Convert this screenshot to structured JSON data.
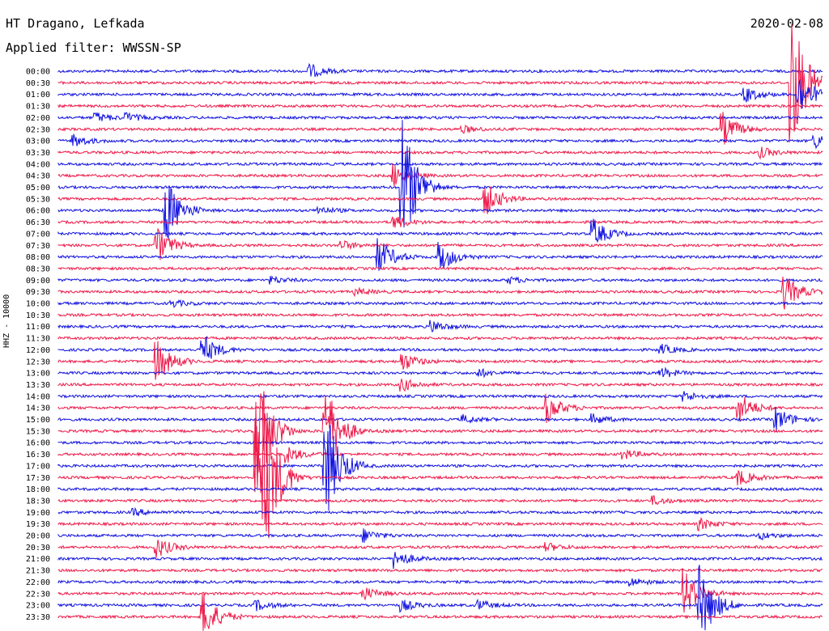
{
  "header": {
    "station": "HT Dragano, Lefkada",
    "filter": "Applied filter: WWSSN-SP",
    "date": "2020-02-08"
  },
  "channel_label": "HHZ - 10000",
  "colors": {
    "trace_a": "#1010e0",
    "trace_b": "#ee1848"
  },
  "chart_data": {
    "type": "line",
    "title": "HT Dragano, Lefkada",
    "subtitle": "Applied filter: WWSSN-SP",
    "ylabel": "HHZ - 10000",
    "categories": [
      "00:00",
      "00:30",
      "01:00",
      "01:30",
      "02:00",
      "02:30",
      "03:00",
      "03:30",
      "04:00",
      "04:30",
      "05:00",
      "05:30",
      "06:00",
      "06:30",
      "07:00",
      "07:30",
      "08:00",
      "08:30",
      "09:00",
      "09:30",
      "10:00",
      "10:30",
      "11:00",
      "11:30",
      "12:00",
      "12:30",
      "13:00",
      "13:30",
      "14:00",
      "14:30",
      "15:00",
      "15:30",
      "16:00",
      "16:30",
      "17:00",
      "17:30",
      "18:00",
      "18:30",
      "19:00",
      "19:30",
      "20:00",
      "20:30",
      "21:00",
      "21:30",
      "22:00",
      "22:30",
      "23:00",
      "23:30"
    ],
    "events": [
      {
        "row": 0,
        "t": 0.33,
        "a": 8
      },
      {
        "row": 1,
        "t": 0.96,
        "a": 90
      },
      {
        "row": 2,
        "t": 0.9,
        "a": 9
      },
      {
        "row": 2,
        "t": 0.97,
        "a": 25
      },
      {
        "row": 4,
        "t": 0.05,
        "a": 6
      },
      {
        "row": 4,
        "t": 0.09,
        "a": 5
      },
      {
        "row": 5,
        "t": 0.87,
        "a": 20
      },
      {
        "row": 5,
        "t": 0.53,
        "a": 4
      },
      {
        "row": 6,
        "t": 0.02,
        "a": 8
      },
      {
        "row": 6,
        "t": 0.99,
        "a": 9
      },
      {
        "row": 7,
        "t": 0.92,
        "a": 6
      },
      {
        "row": 9,
        "t": 0.44,
        "a": 14
      },
      {
        "row": 10,
        "t": 0.45,
        "a": 90
      },
      {
        "row": 11,
        "t": 0.56,
        "a": 20
      },
      {
        "row": 12,
        "t": 0.14,
        "a": 45
      },
      {
        "row": 12,
        "t": 0.34,
        "a": 5
      },
      {
        "row": 13,
        "t": 0.44,
        "a": 8
      },
      {
        "row": 14,
        "t": 0.7,
        "a": 18
      },
      {
        "row": 15,
        "t": 0.13,
        "a": 22
      },
      {
        "row": 15,
        "t": 0.37,
        "a": 6
      },
      {
        "row": 16,
        "t": 0.42,
        "a": 22
      },
      {
        "row": 16,
        "t": 0.5,
        "a": 18
      },
      {
        "row": 18,
        "t": 0.28,
        "a": 4
      },
      {
        "row": 18,
        "t": 0.59,
        "a": 4
      },
      {
        "row": 19,
        "t": 0.95,
        "a": 22
      },
      {
        "row": 19,
        "t": 0.39,
        "a": 4
      },
      {
        "row": 20,
        "t": 0.15,
        "a": 4
      },
      {
        "row": 22,
        "t": 0.49,
        "a": 7
      },
      {
        "row": 24,
        "t": 0.19,
        "a": 18
      },
      {
        "row": 24,
        "t": 0.79,
        "a": 6
      },
      {
        "row": 25,
        "t": 0.13,
        "a": 25
      },
      {
        "row": 25,
        "t": 0.45,
        "a": 12
      },
      {
        "row": 26,
        "t": 0.55,
        "a": 5
      },
      {
        "row": 26,
        "t": 0.79,
        "a": 6
      },
      {
        "row": 27,
        "t": 0.45,
        "a": 8
      },
      {
        "row": 28,
        "t": 0.82,
        "a": 6
      },
      {
        "row": 29,
        "t": 0.64,
        "a": 18
      },
      {
        "row": 29,
        "t": 0.89,
        "a": 20
      },
      {
        "row": 30,
        "t": 0.94,
        "a": 15
      },
      {
        "row": 30,
        "t": 0.7,
        "a": 6
      },
      {
        "row": 30,
        "t": 0.53,
        "a": 5
      },
      {
        "row": 31,
        "t": 0.35,
        "a": 60
      },
      {
        "row": 31,
        "t": 0.26,
        "a": 80
      },
      {
        "row": 33,
        "t": 0.3,
        "a": 10
      },
      {
        "row": 33,
        "t": 0.74,
        "a": 6
      },
      {
        "row": 34,
        "t": 0.35,
        "a": 70
      },
      {
        "row": 35,
        "t": 0.26,
        "a": 80
      },
      {
        "row": 35,
        "t": 0.27,
        "a": 60
      },
      {
        "row": 35,
        "t": 0.89,
        "a": 10
      },
      {
        "row": 37,
        "t": 0.78,
        "a": 5
      },
      {
        "row": 38,
        "t": 0.1,
        "a": 4
      },
      {
        "row": 39,
        "t": 0.84,
        "a": 7
      },
      {
        "row": 40,
        "t": 0.4,
        "a": 8
      },
      {
        "row": 40,
        "t": 0.92,
        "a": 4
      },
      {
        "row": 41,
        "t": 0.13,
        "a": 12
      },
      {
        "row": 41,
        "t": 0.64,
        "a": 5
      },
      {
        "row": 42,
        "t": 0.44,
        "a": 12
      },
      {
        "row": 44,
        "t": 0.75,
        "a": 5
      },
      {
        "row": 45,
        "t": 0.82,
        "a": 30
      },
      {
        "row": 45,
        "t": 0.4,
        "a": 8
      },
      {
        "row": 46,
        "t": 0.84,
        "a": 50
      },
      {
        "row": 46,
        "t": 0.45,
        "a": 7
      },
      {
        "row": 46,
        "t": 0.26,
        "a": 6
      },
      {
        "row": 46,
        "t": 0.55,
        "a": 6
      },
      {
        "row": 47,
        "t": 0.19,
        "a": 30
      }
    ]
  }
}
